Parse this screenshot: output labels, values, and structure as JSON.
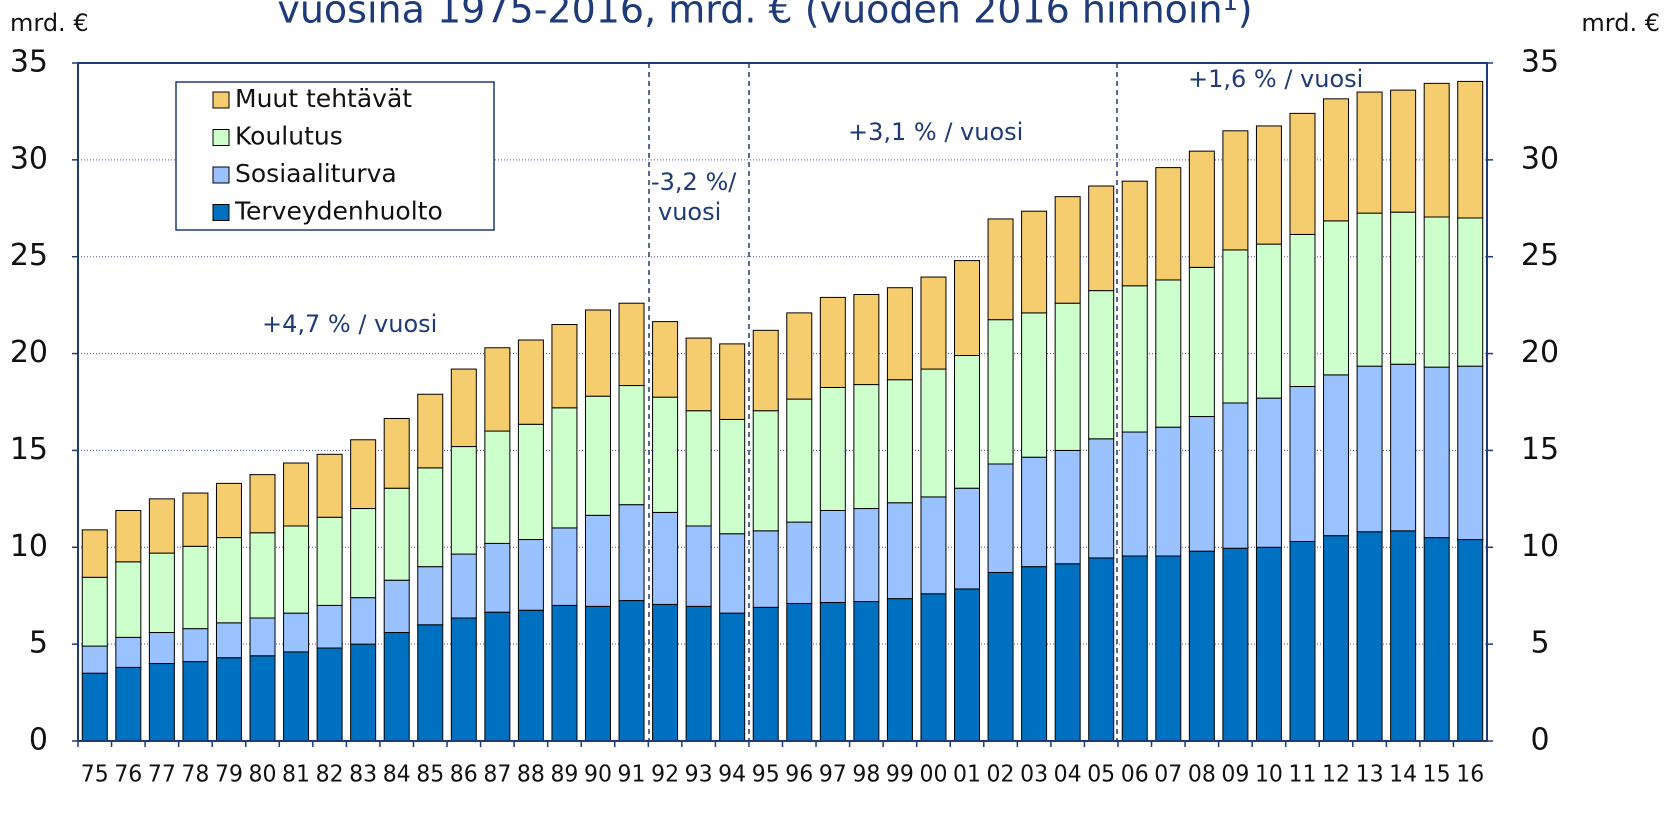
{
  "chart_data": {
    "type": "stacked-bar",
    "title": "vuosina 1975-2016, mrd. € (vuoden 2016  hinnoin¹)",
    "y_label": "mrd. €",
    "y2_label": "mrd. €",
    "categories": [
      "75",
      "76",
      "77",
      "78",
      "79",
      "80",
      "81",
      "82",
      "83",
      "84",
      "85",
      "86",
      "87",
      "88",
      "89",
      "90",
      "91",
      "92",
      "93",
      "94",
      "95",
      "96",
      "97",
      "98",
      "99",
      "00",
      "01",
      "02",
      "03",
      "04",
      "05",
      "06",
      "07",
      "08",
      "09",
      "10",
      "11",
      "12",
      "13",
      "14",
      "15",
      "16"
    ],
    "series": [
      {
        "name": "Terveydenhuolto",
        "color": "#0070c0",
        "values": [
          3.5,
          3.8,
          4.0,
          4.1,
          4.3,
          4.4,
          4.6,
          4.8,
          5.0,
          5.6,
          6.0,
          6.35,
          6.65,
          6.75,
          7.0,
          6.95,
          7.25,
          7.05,
          6.95,
          6.6,
          6.9,
          7.1,
          7.15,
          7.2,
          7.35,
          7.6,
          7.85,
          8.7,
          9.0,
          9.15,
          9.45,
          9.55,
          9.55,
          9.8,
          9.95,
          10.0,
          10.3,
          10.6,
          10.8,
          10.85,
          10.5,
          10.4
        ]
      },
      {
        "name": "Sosiaaliturva",
        "color": "#99c2ff",
        "values": [
          1.4,
          1.55,
          1.6,
          1.7,
          1.8,
          1.95,
          2.0,
          2.2,
          2.4,
          2.7,
          3.0,
          3.3,
          3.55,
          3.65,
          4.0,
          4.7,
          4.95,
          4.75,
          4.15,
          4.1,
          3.95,
          4.2,
          4.75,
          4.8,
          4.95,
          5.0,
          5.2,
          5.6,
          5.65,
          5.85,
          6.15,
          6.4,
          6.65,
          6.95,
          7.5,
          7.7,
          8.0,
          8.3,
          8.55,
          8.6,
          8.8,
          8.95
        ]
      },
      {
        "name": "Koulutus",
        "color": "#ccffcc",
        "values": [
          3.55,
          3.9,
          4.1,
          4.25,
          4.4,
          4.4,
          4.5,
          4.55,
          4.6,
          4.75,
          5.1,
          5.55,
          5.8,
          5.95,
          6.2,
          6.15,
          6.15,
          5.95,
          5.95,
          5.9,
          6.2,
          6.35,
          6.35,
          6.4,
          6.35,
          6.6,
          6.85,
          7.45,
          7.45,
          7.6,
          7.65,
          7.55,
          7.6,
          7.7,
          7.9,
          7.95,
          7.85,
          7.95,
          7.9,
          7.85,
          7.75,
          7.65
        ]
      },
      {
        "name": "Muut tehtävät",
        "color": "#f5cd6e",
        "values": [
          2.45,
          2.65,
          2.8,
          2.75,
          2.8,
          3.0,
          3.25,
          3.25,
          3.55,
          3.6,
          3.8,
          4.0,
          4.3,
          4.35,
          4.3,
          4.45,
          4.25,
          3.9,
          3.75,
          3.9,
          4.15,
          4.45,
          4.65,
          4.65,
          4.75,
          4.75,
          4.9,
          5.2,
          5.25,
          5.5,
          5.4,
          5.4,
          5.8,
          6.0,
          6.15,
          6.1,
          6.25,
          6.3,
          6.25,
          6.3,
          6.9,
          7.05
        ]
      }
    ],
    "ylim": [
      0,
      35
    ],
    "yticks": [
      0,
      5,
      10,
      15,
      20,
      25,
      30,
      35
    ],
    "y2lim": [
      0,
      35
    ],
    "y2ticks": [
      0,
      5,
      10,
      15,
      20,
      25,
      30,
      35
    ],
    "grid": true,
    "annotations": [
      "+4,7 % / vuosi",
      "-3,2 %/",
      "vuosi",
      "+3,1 % / vuosi",
      "+1,6 % / vuosi"
    ]
  }
}
